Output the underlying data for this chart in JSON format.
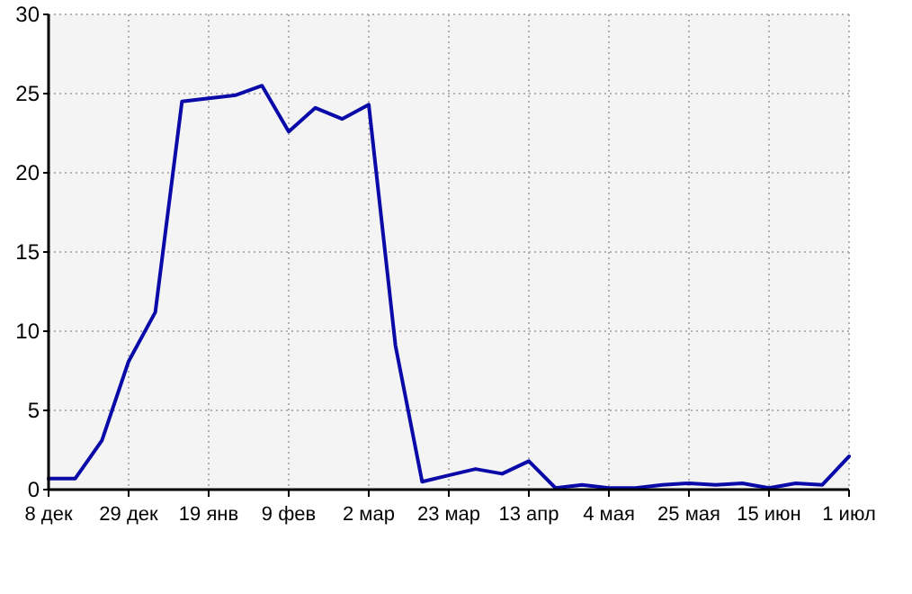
{
  "chart_data": {
    "type": "line",
    "categories": [
      "8 дек",
      null,
      null,
      "29 дек",
      null,
      null,
      "19 янв",
      null,
      null,
      "9 фев",
      null,
      null,
      "2 мар",
      null,
      null,
      "23 мар",
      null,
      null,
      "13 апр",
      null,
      null,
      "4 мая",
      null,
      null,
      "25 мая",
      null,
      null,
      "15 июн",
      null,
      null,
      "1 июл"
    ],
    "series": [
      {
        "color": "#0a0aa8",
        "values": [
          0.7,
          0.7,
          3.1,
          8.1,
          11.2,
          24.5,
          24.7,
          24.9,
          25.5,
          22.6,
          24.1,
          23.4,
          24.3,
          9.1,
          0.5,
          0.9,
          1.3,
          1.0,
          1.8,
          0.1,
          0.3,
          0.1,
          0.1,
          0.3,
          0.4,
          0.3,
          0.4,
          0.1,
          0.4,
          0.3,
          2.1
        ]
      }
    ],
    "ylim": [
      0,
      30
    ],
    "yticks": [
      0,
      5,
      10,
      15,
      20,
      25,
      30
    ],
    "grid": true,
    "marker": "none",
    "line_style": "solid"
  }
}
